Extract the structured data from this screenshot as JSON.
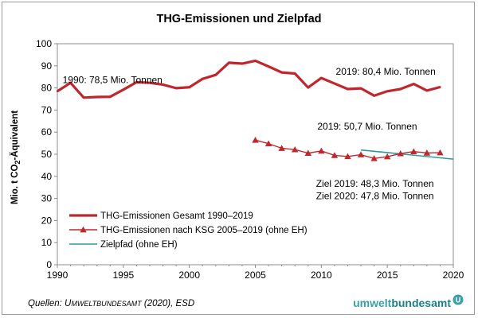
{
  "chart_data": {
    "type": "line",
    "title": "THG-Emissionen und Zielpfad",
    "ylabel": {
      "pre": "Mio. t CO",
      "sub": "2",
      "post": "-Äquivalent"
    },
    "xlabel": "",
    "xlim": [
      1990,
      2020
    ],
    "ylim": [
      0,
      100
    ],
    "x_ticks": [
      1990,
      1995,
      2000,
      2005,
      2010,
      2015,
      2020
    ],
    "y_ticks": [
      0,
      10,
      20,
      30,
      40,
      50,
      60,
      70,
      80,
      90,
      100
    ],
    "grid": false,
    "legend_position": "bottom-left",
    "colors": {
      "series": "#c0272d",
      "target": "#2e9a9c",
      "logo": "#3aa0a8"
    },
    "series": [
      {
        "name": "THG-Emissionen Gesamt 1990–2019",
        "x": [
          1990,
          1991,
          1992,
          1993,
          1994,
          1995,
          1996,
          1997,
          1998,
          1999,
          2000,
          2001,
          2002,
          2003,
          2004,
          2005,
          2006,
          2007,
          2008,
          2009,
          2010,
          2011,
          2012,
          2013,
          2014,
          2015,
          2016,
          2017,
          2018,
          2019
        ],
        "values": [
          78.5,
          82.3,
          75.6,
          75.9,
          76.0,
          79.2,
          82.6,
          82.3,
          81.5,
          79.9,
          80.3,
          84.1,
          85.9,
          91.4,
          91.0,
          92.3,
          89.7,
          87.0,
          86.5,
          80.2,
          84.5,
          82.0,
          79.5,
          79.8,
          76.5,
          78.5,
          79.5,
          81.8,
          78.8,
          80.4
        ],
        "color": "#c0272d",
        "style": "thick-line"
      },
      {
        "name": "THG-Emissionen nach KSG 2005–2019 (ohne EH)",
        "x": [
          2005,
          2006,
          2007,
          2008,
          2009,
          2010,
          2011,
          2012,
          2013,
          2014,
          2015,
          2016,
          2017,
          2018,
          2019
        ],
        "values": [
          56.4,
          54.8,
          52.7,
          52.1,
          50.5,
          51.5,
          49.5,
          49.0,
          49.8,
          48.1,
          48.9,
          50.3,
          51.2,
          50.6,
          50.7
        ],
        "color": "#c0272d",
        "style": "thin-line-triangle-markers"
      },
      {
        "name": "Zielpfad (ohne EH)",
        "x": [
          2013,
          2020
        ],
        "values": [
          51.9,
          47.8
        ],
        "color": "#2e9a9c",
        "style": "thin-line"
      }
    ],
    "annotations": [
      {
        "text": "1990: 78,5 Mio. Tonnen",
        "x": 1990.4,
        "y": 82.2
      },
      {
        "text": "2019: 80,4 Mio. Tonnen",
        "x": 2011.1,
        "y": 86.0
      },
      {
        "text": "2019: 50,7 Mio.  Tonnen",
        "x": 2009.7,
        "y": 61.2
      },
      {
        "text": "Ziel 2019:  48,3 Mio. Tonnen",
        "x": 2009.6,
        "y": 35.2
      },
      {
        "text": "Ziel 2020:  47,8 Mio. Tonnen",
        "x": 2009.6,
        "y": 29.7
      }
    ]
  },
  "source": {
    "prefix": "Quellen: ",
    "org": "Umweltbundesamt",
    "suffix": " (2020), ESD"
  },
  "logo": {
    "part1": "umwelt",
    "part2": "bundesamt",
    "mark": "U"
  }
}
